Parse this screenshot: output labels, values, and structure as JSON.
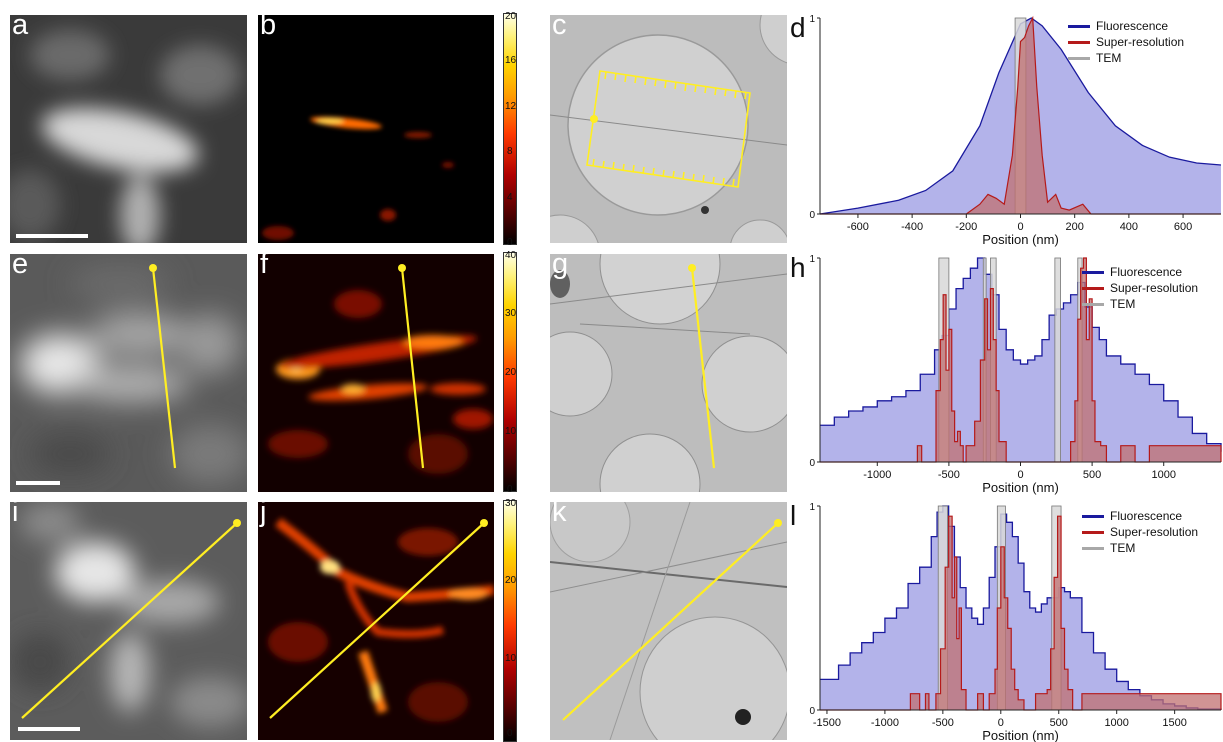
{
  "panels": {
    "a": "a",
    "b": "b",
    "c": "c",
    "d": "d",
    "e": "e",
    "f": "f",
    "g": "g",
    "h": "h",
    "i": "i",
    "j": "j",
    "k": "k",
    "l": "l"
  },
  "colorbars": [
    {
      "ticks": [
        "20",
        "16",
        "12",
        "8",
        "4",
        "0"
      ]
    },
    {
      "ticks": [
        "40",
        "30",
        "20",
        "10",
        "0"
      ]
    },
    {
      "ticks": [
        "30",
        "20",
        "10",
        "0"
      ]
    }
  ],
  "colors": {
    "fluorescence_line": "#1a1a9e",
    "fluorescence_fill": "#a6a6e6",
    "superres_line": "#b51a1a",
    "superres_fill": "#c07070",
    "tem": "#a8a8a8",
    "annotation": "#ffee22"
  },
  "chart_data": [
    {
      "type": "area",
      "panel": "d",
      "xlabel": "Position (nm)",
      "xticks": [
        -600,
        -400,
        -200,
        0,
        200,
        400,
        600
      ],
      "xlim": [
        -740,
        740
      ],
      "ylim": [
        0,
        1
      ],
      "yticks": [
        "0",
        "1"
      ],
      "legend": [
        "Fluorescence",
        "Super-resolution",
        "TEM"
      ],
      "legend_position": "top-right",
      "series": [
        {
          "name": "Fluorescence",
          "x": [
            -740,
            -600,
            -450,
            -350,
            -250,
            -150,
            -80,
            0,
            40,
            80,
            150,
            250,
            350,
            450,
            550,
            650,
            740
          ],
          "y": [
            0.0,
            0.03,
            0.07,
            0.12,
            0.22,
            0.45,
            0.72,
            0.97,
            1.0,
            0.96,
            0.84,
            0.62,
            0.45,
            0.35,
            0.29,
            0.26,
            0.25
          ]
        },
        {
          "name": "Super-resolution",
          "x": [
            -740,
            -200,
            -150,
            -120,
            -90,
            -60,
            -30,
            -10,
            0,
            15,
            30,
            45,
            60,
            80,
            100,
            130,
            150,
            180,
            230,
            260,
            740
          ],
          "y": [
            0.0,
            0.0,
            0.05,
            0.1,
            0.08,
            0.05,
            0.3,
            0.65,
            0.88,
            0.9,
            0.96,
            1.0,
            0.65,
            0.3,
            0.06,
            0.1,
            0.03,
            0.02,
            0.05,
            0.0,
            0.0
          ]
        },
        {
          "name": "TEM",
          "bands": [
            [
              -20,
              20
            ]
          ]
        }
      ]
    },
    {
      "type": "area",
      "panel": "h",
      "xlabel": "Position (nm)",
      "xticks": [
        -1000,
        -500,
        0,
        500,
        1000
      ],
      "xlim": [
        -1400,
        1400
      ],
      "ylim": [
        0,
        1
      ],
      "yticks": [
        "0",
        "1"
      ],
      "legend": [
        "Fluorescence",
        "Super-resolution",
        "TEM"
      ],
      "legend_position": "top-right",
      "series": [
        {
          "name": "Fluorescence",
          "x": [
            -1400,
            -1300,
            -1200,
            -1100,
            -1000,
            -900,
            -800,
            -700,
            -600,
            -550,
            -500,
            -450,
            -400,
            -350,
            -300,
            -250,
            -200,
            -150,
            -100,
            -50,
            0,
            50,
            100,
            150,
            200,
            250,
            300,
            350,
            400,
            450,
            500,
            550,
            600,
            700,
            800,
            900,
            1000,
            1100,
            1200,
            1300,
            1400
          ],
          "y": [
            0.18,
            0.22,
            0.25,
            0.27,
            0.3,
            0.32,
            0.35,
            0.43,
            0.55,
            0.62,
            0.75,
            0.85,
            0.9,
            0.95,
            1.0,
            0.92,
            0.82,
            0.65,
            0.55,
            0.5,
            0.48,
            0.5,
            0.52,
            0.6,
            0.72,
            0.75,
            0.78,
            0.82,
            0.88,
            0.76,
            0.66,
            0.6,
            0.52,
            0.48,
            0.43,
            0.38,
            0.3,
            0.22,
            0.14,
            0.09,
            0.05
          ]
        },
        {
          "name": "Super-resolution",
          "x": [
            -1400,
            -750,
            -720,
            -690,
            -600,
            -590,
            -560,
            -540,
            -520,
            -500,
            -480,
            -460,
            -440,
            -420,
            -400,
            -380,
            -320,
            -280,
            -250,
            -230,
            -210,
            -190,
            -170,
            -150,
            -100,
            100,
            300,
            350,
            380,
            400,
            420,
            440,
            460,
            480,
            500,
            520,
            560,
            600,
            700,
            800,
            900,
            1400
          ],
          "y": [
            0.0,
            0.0,
            0.08,
            0.0,
            0.0,
            0.35,
            0.6,
            0.82,
            0.45,
            0.65,
            0.25,
            0.1,
            0.15,
            0.08,
            0.0,
            0.08,
            0.2,
            0.5,
            0.8,
            0.55,
            0.85,
            0.6,
            0.35,
            0.1,
            0.0,
            0.0,
            0.0,
            0.1,
            0.3,
            0.7,
            0.95,
            1.0,
            0.6,
            0.8,
            0.3,
            0.1,
            0.08,
            0.0,
            0.08,
            0.0,
            0.08,
            0.0
          ]
        },
        {
          "name": "TEM",
          "bands": [
            [
              -570,
              -500
            ],
            [
              -260,
              -240
            ],
            [
              -210,
              -170
            ],
            [
              240,
              280
            ],
            [
              400,
              430
            ]
          ]
        }
      ]
    },
    {
      "type": "area",
      "panel": "l",
      "xlabel": "Position (nm)",
      "xticks": [
        -1500,
        -1000,
        -500,
        0,
        500,
        1000,
        1500
      ],
      "xlim": [
        -1560,
        1900
      ],
      "ylim": [
        0,
        1
      ],
      "yticks": [
        "0",
        "1"
      ],
      "legend": [
        "Fluorescence",
        "Super-resolution",
        "TEM"
      ],
      "legend_position": "top-right",
      "series": [
        {
          "name": "Fluorescence",
          "x": [
            -1560,
            -1400,
            -1300,
            -1200,
            -1100,
            -1000,
            -900,
            -800,
            -700,
            -600,
            -550,
            -500,
            -450,
            -400,
            -350,
            -300,
            -250,
            -200,
            -150,
            -100,
            -50,
            0,
            50,
            100,
            150,
            200,
            250,
            300,
            350,
            400,
            450,
            500,
            550,
            600,
            700,
            800,
            900,
            1000,
            1100,
            1200,
            1300,
            1400,
            1500,
            1600,
            1700,
            1900
          ],
          "y": [
            0.15,
            0.22,
            0.28,
            0.33,
            0.38,
            0.45,
            0.5,
            0.62,
            0.7,
            0.85,
            0.97,
            1.0,
            0.9,
            0.75,
            0.6,
            0.5,
            0.45,
            0.42,
            0.5,
            0.65,
            0.8,
            0.96,
            0.92,
            0.85,
            0.72,
            0.58,
            0.5,
            0.48,
            0.52,
            0.55,
            0.55,
            0.6,
            0.58,
            0.55,
            0.38,
            0.28,
            0.2,
            0.14,
            0.1,
            0.07,
            0.05,
            0.03,
            0.02,
            0.01,
            0.005,
            0.0
          ]
        },
        {
          "name": "Super-resolution",
          "x": [
            -1560,
            -800,
            -780,
            -700,
            -650,
            -620,
            -560,
            -520,
            -480,
            -450,
            -420,
            -400,
            -380,
            -360,
            -340,
            -300,
            -200,
            -150,
            -100,
            -50,
            -30,
            0,
            30,
            60,
            90,
            120,
            150,
            200,
            300,
            400,
            430,
            460,
            490,
            520,
            550,
            580,
            620,
            700,
            1900
          ],
          "y": [
            0.0,
            0.0,
            0.08,
            0.0,
            0.08,
            0.0,
            0.08,
            0.3,
            0.7,
            0.95,
            0.55,
            0.75,
            0.35,
            0.5,
            0.1,
            0.0,
            0.08,
            0.0,
            0.08,
            0.2,
            0.5,
            0.8,
            0.55,
            0.4,
            0.2,
            0.1,
            0.05,
            0.0,
            0.08,
            0.1,
            0.3,
            0.65,
            0.95,
            0.4,
            0.2,
            0.1,
            0.0,
            0.08,
            0.0
          ]
        },
        {
          "name": "TEM",
          "bands": [
            [
              -540,
              -460
            ],
            [
              -30,
              40
            ],
            [
              440,
              520
            ]
          ]
        }
      ]
    }
  ]
}
